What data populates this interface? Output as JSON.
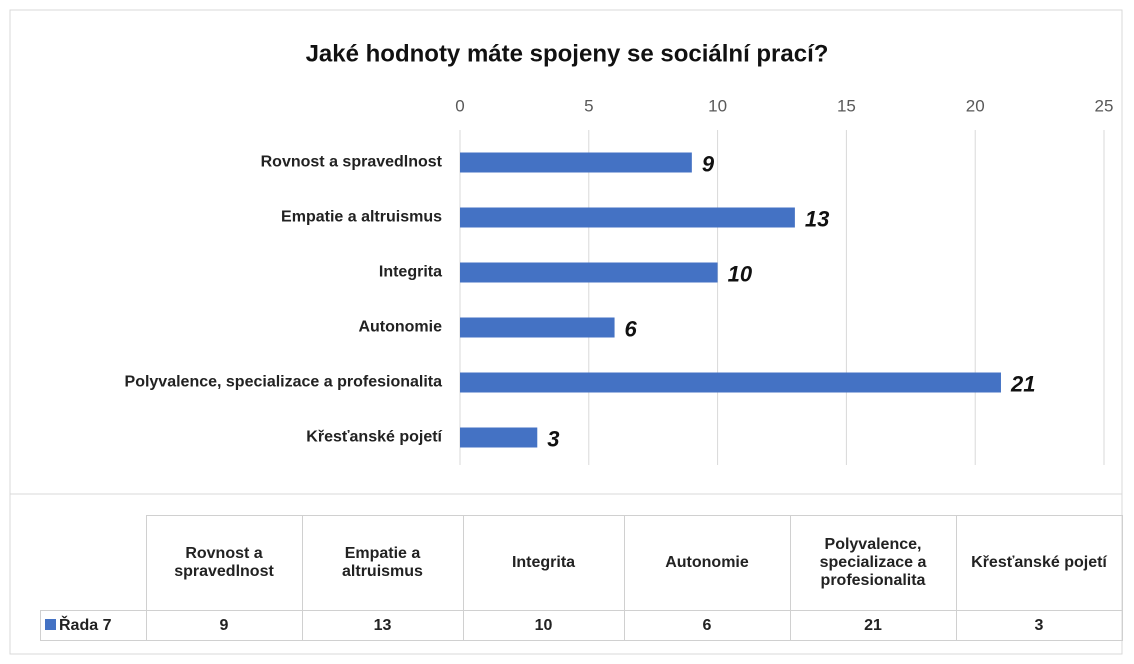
{
  "chart_data": {
    "type": "bar",
    "orientation": "horizontal",
    "title": "Jaké hodnoty máte spojeny se sociální prací?",
    "categories": [
      "Rovnost a spravedlnost",
      "Empatie a altruismus",
      "Integrita",
      "Autonomie",
      "Polyvalence, specializace a profesionalita",
      "Křesťanské pojetí"
    ],
    "series": [
      {
        "name": "Řada 7",
        "color": "#4472c4",
        "values": [
          9,
          13,
          10,
          6,
          21,
          3
        ]
      }
    ],
    "xlim": [
      0,
      25
    ],
    "xticks": [
      0,
      5,
      10,
      15,
      20,
      25
    ],
    "grid": true,
    "data_table": true
  }
}
